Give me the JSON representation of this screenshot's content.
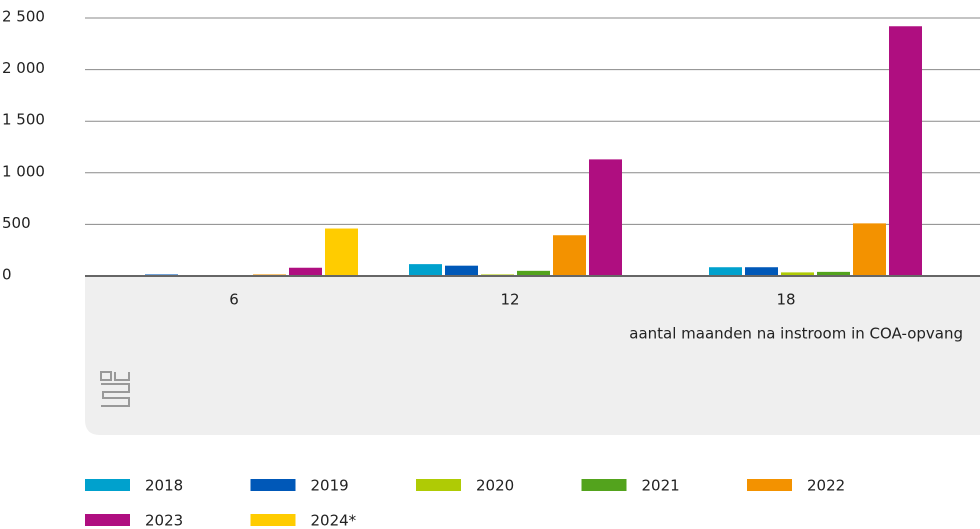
{
  "chart_data": {
    "type": "bar",
    "x_label": "aantal maanden na instroom in COA-opvang",
    "categories": [
      "6",
      "12",
      "18"
    ],
    "series": [
      {
        "name": "2018",
        "color": "#00a1cd",
        "values": [
          5,
          115,
          85
        ]
      },
      {
        "name": "2019",
        "color": "#0058b8",
        "values": [
          15,
          100,
          85
        ]
      },
      {
        "name": "2020",
        "color": "#afcb05",
        "values": [
          5,
          15,
          35
        ]
      },
      {
        "name": "2021",
        "color": "#53a31d",
        "values": [
          5,
          50,
          40
        ]
      },
      {
        "name": "2022",
        "color": "#f39200",
        "values": [
          15,
          395,
          510
        ]
      },
      {
        "name": "2023",
        "color": "#af0e80",
        "values": [
          80,
          1130,
          2420
        ]
      },
      {
        "name": "2024*",
        "color": "#ffcc00",
        "values": [
          460,
          null,
          null
        ]
      }
    ],
    "ylim": [
      0,
      2500
    ],
    "yticks": [
      0,
      500,
      {
        "value": 1000,
        "label": "1 000"
      },
      {
        "value": 1500,
        "label": "1 500"
      },
      {
        "value": 2000,
        "label": "2 000"
      },
      {
        "value": 2500,
        "label": "2 500"
      }
    ],
    "grid": true,
    "legend": "bottom"
  }
}
